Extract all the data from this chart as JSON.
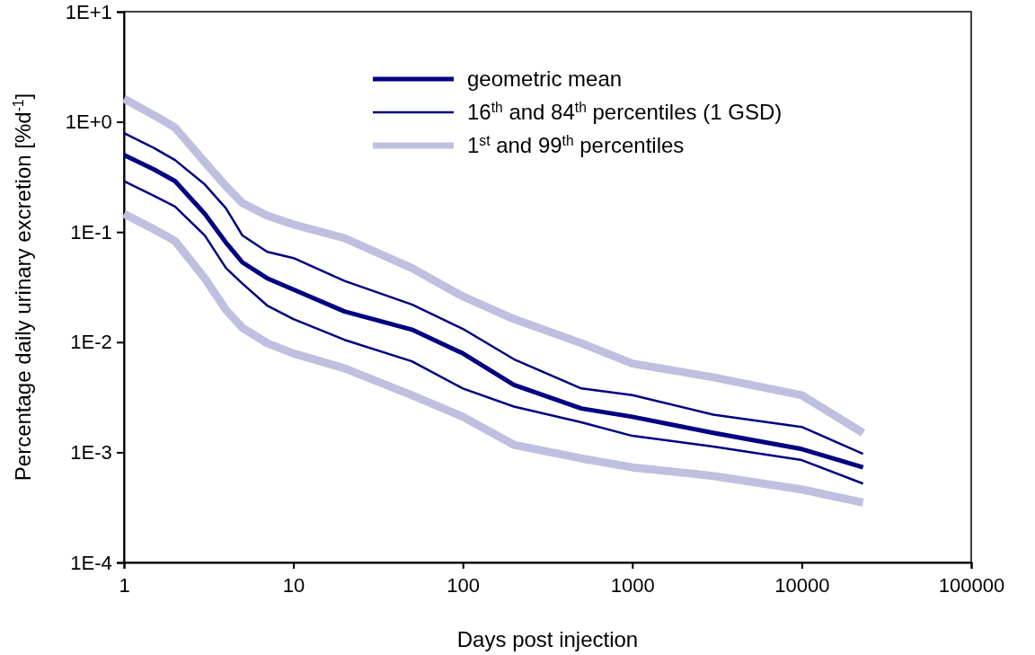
{
  "chart_data": {
    "type": "line",
    "xlabel": "Days post injection",
    "ylabel": "Percentage daily urinary excretion [%d$^{-1}$]",
    "x": [
      1,
      1.5,
      2,
      3,
      4,
      5,
      7,
      10,
      20,
      50,
      100,
      200,
      500,
      1000,
      3000,
      10000,
      23000
    ],
    "log": "xy",
    "xlim": [
      1,
      100000
    ],
    "xticks": [
      1,
      10,
      100,
      1000,
      10000,
      100000
    ],
    "ylim": [
      0.0001,
      10
    ],
    "yticks": [
      {
        "value": 0.0001,
        "label": "1E-4"
      },
      {
        "value": 0.001,
        "label": "1E-3"
      },
      {
        "value": 0.01,
        "label": "1E-2"
      },
      {
        "value": 0.1,
        "label": "1E-1"
      },
      {
        "value": 1,
        "label": "1E+0"
      },
      {
        "value": 10,
        "label": "1E+1"
      }
    ],
    "grid": false,
    "legend": "top",
    "marker": "none",
    "line_style": "solid",
    "series": [
      {
        "name": "1$^{st}$ and 99$^{th}$ percentiles",
        "color": "#bfbfdf",
        "values": [
          1.62,
          1.15,
          0.89,
          0.43,
          0.26,
          0.183,
          0.141,
          0.117,
          0.088,
          0.047,
          0.026,
          0.0162,
          0.0098,
          0.0064,
          0.0048,
          0.0033,
          0.0015
        ]
      },
      {
        "color": "#bfbfdf",
        "values": [
          0.146,
          0.106,
          0.083,
          0.038,
          0.0196,
          0.0135,
          0.0098,
          0.0079,
          0.0058,
          0.0033,
          0.0021,
          0.00117,
          0.00088,
          0.00073,
          0.00061,
          0.00046,
          0.00035
        ]
      },
      {
        "name": "16$^{th}$ and 84$^{th}$ percentiles (1 GSD)",
        "color": "#000080",
        "values": [
          0.79,
          0.58,
          0.45,
          0.27,
          0.164,
          0.093,
          0.066,
          0.058,
          0.036,
          0.022,
          0.0132,
          0.007,
          0.0038,
          0.0033,
          0.0022,
          0.0017,
          0.00097
        ]
      },
      {
        "color": "#000080",
        "values": [
          0.29,
          0.213,
          0.17,
          0.093,
          0.047,
          0.034,
          0.0215,
          0.0162,
          0.0105,
          0.0067,
          0.0038,
          0.0026,
          0.00187,
          0.00141,
          0.00113,
          0.00085,
          0.00052
        ]
      },
      {
        "name": "geometric mean",
        "color": "#000080",
        "values": [
          0.5,
          0.37,
          0.29,
          0.146,
          0.08,
          0.053,
          0.038,
          0.03,
          0.019,
          0.013,
          0.0079,
          0.0041,
          0.0025,
          0.0021,
          0.0015,
          0.00107,
          0.00073
        ]
      }
    ]
  }
}
